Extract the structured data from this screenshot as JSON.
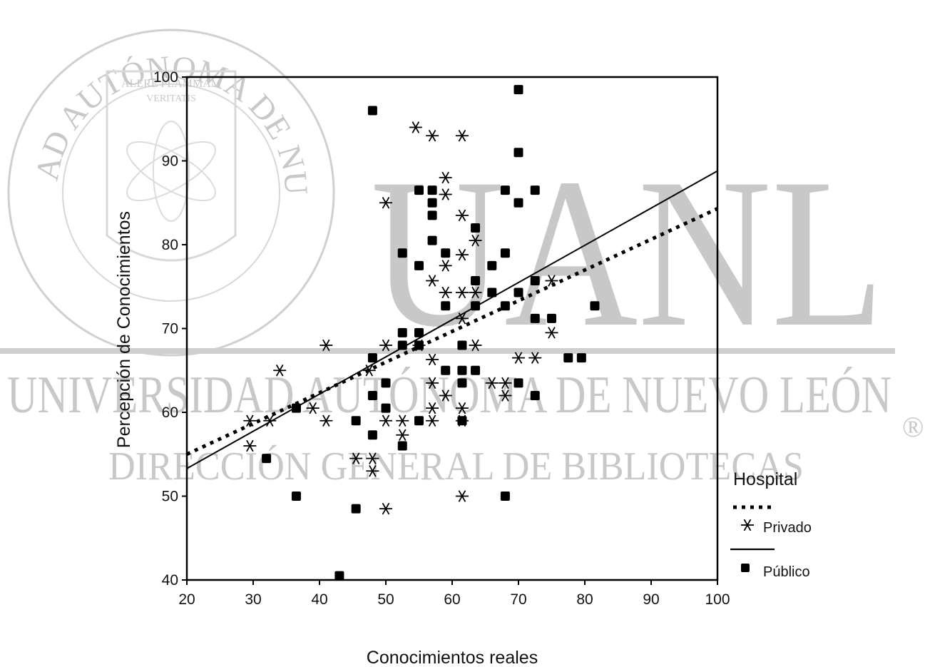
{
  "watermark": {
    "university_arc": "UNIVERSIDAD AUTÓNOMA DE NUEVO LEÓN",
    "motto_line1": "ALERE FLAMMAM",
    "motto_line2": "VERITATIS",
    "big_letters": "UANL",
    "band_text": "UNIVERSIDAD AUTÓNOMA DE NUEVO LEÓN",
    "registered_mark": "®",
    "sub_text": "DIRECCIÓN GENERAL DE BIBLIOTECAS"
  },
  "chart_data": {
    "type": "scatter",
    "xlabel": "Conocimientos reales",
    "ylabel": "Percepción de Conocimientos",
    "xlim": [
      20,
      100
    ],
    "ylim": [
      40,
      100
    ],
    "x_ticks": [
      "20",
      "30",
      "40",
      "50",
      "60",
      "70",
      "80",
      "90",
      "100"
    ],
    "y_ticks": [
      "40",
      "50",
      "60",
      "70",
      "80",
      "90",
      "100"
    ],
    "legend_title": "Hospital",
    "legend_position": "right",
    "grid": false,
    "series": [
      {
        "name": "Privado",
        "marker": "asterisk",
        "fit_line_style": "dotted",
        "fit_line": [
          [
            20,
            55.0
          ],
          [
            100,
            84.3
          ]
        ],
        "points": [
          [
            29.5,
            59
          ],
          [
            32.5,
            59
          ],
          [
            29.5,
            56
          ],
          [
            34,
            65
          ],
          [
            39,
            60.5
          ],
          [
            41,
            59
          ],
          [
            41,
            68
          ],
          [
            45.5,
            54.5
          ],
          [
            47.5,
            65
          ],
          [
            48,
            54.5
          ],
          [
            48,
            53
          ],
          [
            50,
            48.5
          ],
          [
            50,
            68
          ],
          [
            50,
            59
          ],
          [
            50,
            85
          ],
          [
            52.5,
            59
          ],
          [
            52.5,
            57.3
          ],
          [
            54.5,
            94
          ],
          [
            55,
            68
          ],
          [
            57,
            93
          ],
          [
            57,
            75.7
          ],
          [
            57,
            66.3
          ],
          [
            57,
            63.5
          ],
          [
            57,
            60.5
          ],
          [
            57,
            59
          ],
          [
            59,
            88
          ],
          [
            59,
            86
          ],
          [
            59,
            77.5
          ],
          [
            59,
            74.3
          ],
          [
            59,
            62
          ],
          [
            61.5,
            93
          ],
          [
            61.5,
            83.5
          ],
          [
            61.5,
            78.8
          ],
          [
            61.5,
            74.3
          ],
          [
            61.5,
            71.2
          ],
          [
            61.5,
            60.5
          ],
          [
            61.5,
            59
          ],
          [
            61.5,
            50
          ],
          [
            63.5,
            80.5
          ],
          [
            63.5,
            74.3
          ],
          [
            63.5,
            68
          ],
          [
            66,
            63.5
          ],
          [
            68,
            63.5
          ],
          [
            68,
            62
          ],
          [
            70,
            66.5
          ],
          [
            72.5,
            66.5
          ],
          [
            75,
            75.7
          ],
          [
            75,
            69.5
          ]
        ]
      },
      {
        "name": "Público",
        "marker": "square",
        "fit_line_style": "solid",
        "fit_line": [
          [
            20,
            53.3
          ],
          [
            100,
            88.8
          ]
        ],
        "points": [
          [
            32,
            54.5
          ],
          [
            36.5,
            60.5
          ],
          [
            36.5,
            50
          ],
          [
            43,
            40.5
          ],
          [
            45.5,
            59
          ],
          [
            45.5,
            48.5
          ],
          [
            48,
            96
          ],
          [
            48,
            66.5
          ],
          [
            48,
            62
          ],
          [
            48,
            57.3
          ],
          [
            50,
            63.5
          ],
          [
            50,
            60.5
          ],
          [
            52.5,
            79
          ],
          [
            52.5,
            69.5
          ],
          [
            52.5,
            68
          ],
          [
            52.5,
            56
          ],
          [
            55,
            86.5
          ],
          [
            55,
            77.5
          ],
          [
            55,
            69.5
          ],
          [
            55,
            68
          ],
          [
            55,
            59
          ],
          [
            57,
            86.5
          ],
          [
            57,
            85
          ],
          [
            57,
            83.5
          ],
          [
            57,
            80.5
          ],
          [
            59,
            79
          ],
          [
            59,
            72.7
          ],
          [
            59,
            65
          ],
          [
            61.5,
            68
          ],
          [
            61.5,
            65
          ],
          [
            61.5,
            63.5
          ],
          [
            61.5,
            59
          ],
          [
            63.5,
            82
          ],
          [
            63.5,
            75.7
          ],
          [
            63.5,
            72.7
          ],
          [
            63.5,
            65
          ],
          [
            66,
            77.5
          ],
          [
            66,
            74.3
          ],
          [
            68,
            86.5
          ],
          [
            68,
            79
          ],
          [
            68,
            72.7
          ],
          [
            68,
            50
          ],
          [
            70,
            98.5
          ],
          [
            70,
            91
          ],
          [
            70,
            85
          ],
          [
            70,
            74.3
          ],
          [
            70,
            63.5
          ],
          [
            72.5,
            86.5
          ],
          [
            72.5,
            75.7
          ],
          [
            72.5,
            71.2
          ],
          [
            72.5,
            62
          ],
          [
            75,
            71.2
          ],
          [
            77.5,
            66.5
          ],
          [
            79.5,
            66.5
          ],
          [
            81.5,
            72.7
          ]
        ]
      }
    ]
  }
}
